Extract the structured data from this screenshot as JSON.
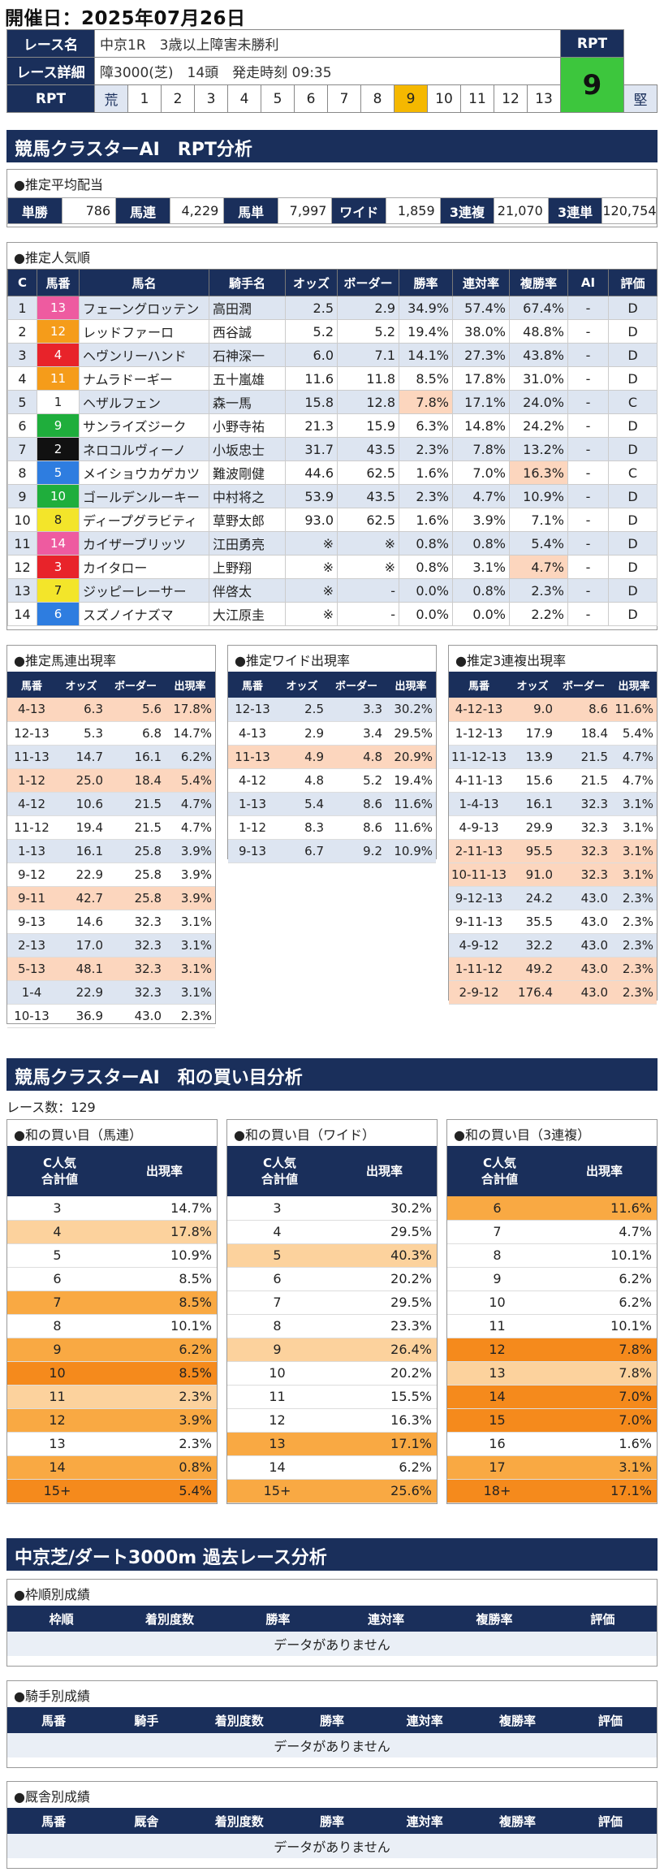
{
  "date_line": "開催日：2025年07月26日",
  "race": {
    "name_label": "レース名",
    "name": "中京1R　3歳以上障害未勝利",
    "detail_label": "レース詳細",
    "detail": "障3000(芝)　14頭　発走時刻 09:35",
    "rpt_label": "RPT",
    "rpt_value": "9",
    "scale_start": "荒",
    "scale_end": "堅",
    "scale": [
      "1",
      "2",
      "3",
      "4",
      "5",
      "6",
      "7",
      "8",
      "9",
      "10",
      "11",
      "12",
      "13"
    ],
    "highlight": "9"
  },
  "sec1": "競馬クラスターAI　RPT分析",
  "odds_title": "●推定平均配当",
  "odds": [
    [
      "単勝",
      "786"
    ],
    [
      "馬連",
      "4,229"
    ],
    [
      "馬単",
      "7,997"
    ],
    [
      "ワイド",
      "1,859"
    ],
    [
      "3連複",
      "21,070"
    ],
    [
      "3連単",
      "120,754"
    ]
  ],
  "pop_title": "●推定人気順",
  "pop_headers": [
    "C",
    "馬番",
    "馬名",
    "騎手名",
    "オッズ",
    "ボーダー",
    "勝率",
    "連対率",
    "複勝率",
    "AI",
    "評価"
  ],
  "pop_rows": [
    [
      "1",
      "13",
      "フェーングロッテン",
      "高田潤",
      "2.5",
      "2.9",
      "34.9%",
      "57.4%",
      "67.4%",
      "-",
      "D"
    ],
    [
      "2",
      "12",
      "レッドファーロ",
      "西谷誠",
      "5.2",
      "5.2",
      "19.4%",
      "38.0%",
      "48.8%",
      "-",
      "D"
    ],
    [
      "3",
      "4",
      "ヘヴンリーハンド",
      "石神深一",
      "6.0",
      "7.1",
      "14.1%",
      "27.3%",
      "43.8%",
      "-",
      "D"
    ],
    [
      "4",
      "11",
      "ナムラドーギー",
      "五十嵐雄",
      "11.6",
      "11.8",
      "8.5%",
      "17.8%",
      "31.0%",
      "-",
      "D"
    ],
    [
      "5",
      "1",
      "ヘザルフェン",
      "森一馬",
      "15.8",
      "12.8",
      "7.8%",
      "17.1%",
      "24.0%",
      "-",
      "C"
    ],
    [
      "6",
      "9",
      "サンライズジーク",
      "小野寺祐",
      "21.3",
      "15.9",
      "6.3%",
      "14.8%",
      "24.2%",
      "-",
      "D"
    ],
    [
      "7",
      "2",
      "ネロコルヴィーノ",
      "小坂忠士",
      "31.7",
      "43.5",
      "2.3%",
      "7.8%",
      "13.2%",
      "-",
      "D"
    ],
    [
      "8",
      "5",
      "メイショウカゲカツ",
      "難波剛健",
      "44.6",
      "62.5",
      "1.6%",
      "7.0%",
      "16.3%",
      "-",
      "C"
    ],
    [
      "9",
      "10",
      "ゴールデンルーキー",
      "中村将之",
      "53.9",
      "43.5",
      "2.3%",
      "4.7%",
      "10.9%",
      "-",
      "D"
    ],
    [
      "10",
      "8",
      "ディープグラビティ",
      "草野太郎",
      "93.0",
      "62.5",
      "1.6%",
      "3.9%",
      "7.1%",
      "-",
      "D"
    ],
    [
      "11",
      "14",
      "カイザーブリッツ",
      "江田勇亮",
      "※",
      "※",
      "0.8%",
      "0.8%",
      "5.4%",
      "-",
      "D"
    ],
    [
      "12",
      "3",
      "カイタロー",
      "上野翔",
      "※",
      "※",
      "0.8%",
      "3.1%",
      "4.7%",
      "-",
      "D"
    ],
    [
      "13",
      "7",
      "ジッピーレーサー",
      "伴啓太",
      "※",
      "-",
      "0.0%",
      "0.8%",
      "2.3%",
      "-",
      "D"
    ],
    [
      "14",
      "6",
      "スズノイナズマ",
      "大江原圭",
      "※",
      "-",
      "0.0%",
      "0.0%",
      "2.2%",
      "-",
      "D"
    ]
  ],
  "umaren": {
    "title": "●推定馬連出現率",
    "headers": [
      "馬番",
      "オッズ",
      "ボーダー",
      "出現率"
    ],
    "rows": [
      [
        "4-13",
        "6.3",
        "5.6",
        "17.8%"
      ],
      [
        "12-13",
        "5.3",
        "6.8",
        "14.7%"
      ],
      [
        "11-13",
        "14.7",
        "16.1",
        "6.2%"
      ],
      [
        "1-12",
        "25.0",
        "18.4",
        "5.4%"
      ],
      [
        "4-12",
        "10.6",
        "21.5",
        "4.7%"
      ],
      [
        "11-12",
        "19.4",
        "21.5",
        "4.7%"
      ],
      [
        "1-13",
        "16.1",
        "25.8",
        "3.9%"
      ],
      [
        "9-12",
        "22.9",
        "25.8",
        "3.9%"
      ],
      [
        "9-11",
        "42.7",
        "25.8",
        "3.9%"
      ],
      [
        "9-13",
        "14.6",
        "32.3",
        "3.1%"
      ],
      [
        "2-13",
        "17.0",
        "32.3",
        "3.1%"
      ],
      [
        "5-13",
        "48.1",
        "32.3",
        "3.1%"
      ],
      [
        "1-4",
        "22.9",
        "32.3",
        "3.1%"
      ],
      [
        "10-13",
        "36.9",
        "43.0",
        "2.3%"
      ]
    ]
  },
  "wide": {
    "title": "●推定ワイド出現率",
    "headers": [
      "馬番",
      "オッズ",
      "ボーダー",
      "出現率"
    ],
    "rows": [
      [
        "12-13",
        "2.5",
        "3.3",
        "30.2%"
      ],
      [
        "4-13",
        "2.9",
        "3.4",
        "29.5%"
      ],
      [
        "11-13",
        "4.9",
        "4.8",
        "20.9%"
      ],
      [
        "4-12",
        "4.8",
        "5.2",
        "19.4%"
      ],
      [
        "1-13",
        "5.4",
        "8.6",
        "11.6%"
      ],
      [
        "1-12",
        "8.3",
        "8.6",
        "11.6%"
      ],
      [
        "9-13",
        "6.7",
        "9.2",
        "10.9%"
      ]
    ]
  },
  "sanrenpuku": {
    "title": "●推定3連複出現率",
    "headers": [
      "馬番",
      "オッズ",
      "ボーダー",
      "出現率"
    ],
    "rows": [
      [
        "4-12-13",
        "9.0",
        "8.6",
        "11.6%"
      ],
      [
        "1-12-13",
        "17.9",
        "18.4",
        "5.4%"
      ],
      [
        "11-12-13",
        "13.9",
        "21.5",
        "4.7%"
      ],
      [
        "4-11-13",
        "15.6",
        "21.5",
        "4.7%"
      ],
      [
        "1-4-13",
        "16.1",
        "32.3",
        "3.1%"
      ],
      [
        "4-9-13",
        "29.9",
        "32.3",
        "3.1%"
      ],
      [
        "2-11-13",
        "95.5",
        "32.3",
        "3.1%"
      ],
      [
        "10-11-13",
        "91.0",
        "32.3",
        "3.1%"
      ],
      [
        "9-12-13",
        "24.2",
        "43.0",
        "2.3%"
      ],
      [
        "9-11-13",
        "35.5",
        "43.0",
        "2.3%"
      ],
      [
        "4-9-12",
        "32.2",
        "43.0",
        "2.3%"
      ],
      [
        "1-11-12",
        "49.2",
        "43.0",
        "2.3%"
      ],
      [
        "2-9-12",
        "176.4",
        "43.0",
        "2.3%"
      ]
    ]
  },
  "sec2": "競馬クラスターAI　和の買い目分析",
  "race_count": "レース数：129",
  "buy_umaren": {
    "title": "●和の買い目（馬連）",
    "h1": "C人気",
    "h2": "合計値",
    "h3": "出現率",
    "rows": [
      [
        "3",
        "14.7%"
      ],
      [
        "4",
        "17.8%"
      ],
      [
        "5",
        "10.9%"
      ],
      [
        "6",
        "8.5%"
      ],
      [
        "7",
        "8.5%"
      ],
      [
        "8",
        "10.1%"
      ],
      [
        "9",
        "6.2%"
      ],
      [
        "10",
        "8.5%"
      ],
      [
        "11",
        "2.3%"
      ],
      [
        "12",
        "3.9%"
      ],
      [
        "13",
        "2.3%"
      ],
      [
        "14",
        "0.8%"
      ],
      [
        "15+",
        "5.4%"
      ]
    ]
  },
  "buy_wide": {
    "title": "●和の買い目（ワイド）",
    "h1": "C人気",
    "h2": "合計値",
    "h3": "出現率",
    "rows": [
      [
        "3",
        "30.2%"
      ],
      [
        "4",
        "29.5%"
      ],
      [
        "5",
        "40.3%"
      ],
      [
        "6",
        "20.2%"
      ],
      [
        "7",
        "29.5%"
      ],
      [
        "8",
        "23.3%"
      ],
      [
        "9",
        "26.4%"
      ],
      [
        "10",
        "20.2%"
      ],
      [
        "11",
        "15.5%"
      ],
      [
        "12",
        "16.3%"
      ],
      [
        "13",
        "17.1%"
      ],
      [
        "14",
        "6.2%"
      ],
      [
        "15+",
        "25.6%"
      ]
    ]
  },
  "buy_sanren": {
    "title": "●和の買い目（3連複）",
    "h1": "C人気",
    "h2": "合計値",
    "h3": "出現率",
    "rows": [
      [
        "6",
        "11.6%"
      ],
      [
        "7",
        "4.7%"
      ],
      [
        "8",
        "10.1%"
      ],
      [
        "9",
        "6.2%"
      ],
      [
        "10",
        "6.2%"
      ],
      [
        "11",
        "10.1%"
      ],
      [
        "12",
        "7.8%"
      ],
      [
        "13",
        "7.8%"
      ],
      [
        "14",
        "7.0%"
      ],
      [
        "15",
        "7.0%"
      ],
      [
        "16",
        "1.6%"
      ],
      [
        "17",
        "3.1%"
      ],
      [
        "18+",
        "17.1%"
      ]
    ]
  },
  "sec3": "中京芝/ダート3000m 過去レース分析",
  "past1": {
    "title": "●枠順別成績",
    "headers": [
      "枠順",
      "着別度数",
      "勝率",
      "連対率",
      "複勝率",
      "評価"
    ],
    "empty": "データがありません"
  },
  "past2": {
    "title": "●騎手別成績",
    "headers": [
      "馬番",
      "騎手",
      "着別度数",
      "勝率",
      "連対率",
      "複勝率",
      "評価"
    ],
    "empty": "データがありません"
  },
  "past3": {
    "title": "●厩舎別成績",
    "headers": [
      "馬番",
      "厩舎",
      "着別度数",
      "勝率",
      "連対率",
      "複勝率",
      "評価"
    ],
    "empty": "データがありません"
  },
  "colors": {
    "navy": "#1a2f5b",
    "rpt_green": "#3dc63d",
    "highlight": "#f5b800",
    "row_blue": "#dde5f1",
    "row_peach": "#fcd6be",
    "orange1": "#fcd29d",
    "orange2": "#f9a943",
    "orange3": "#f58a1c"
  }
}
